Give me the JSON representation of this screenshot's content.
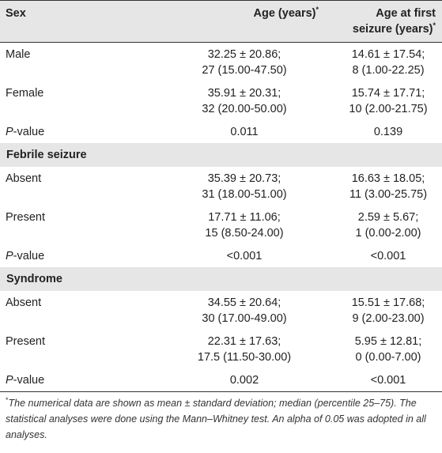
{
  "header": {
    "col1": "Sex",
    "col2": "Age (years)",
    "col2_mark": "*",
    "col3_line1": "Age at first",
    "col3_line2": "seizure (years)",
    "col3_mark": "*"
  },
  "sections": {
    "sex": {
      "rows": [
        {
          "label": "Male",
          "age_line1": "32.25 ± 20.86;",
          "age_line2": "27 (15.00-47.50)",
          "seizure_line1": "14.61 ± 17.54;",
          "seizure_line2": "8 (1.00-22.25)"
        },
        {
          "label": "Female",
          "age_line1": "35.91 ± 20.31;",
          "age_line2": "32 (20.00-50.00)",
          "seizure_line1": "15.74 ± 17.71;",
          "seizure_line2": "10 (2.00-21.75)"
        }
      ],
      "pvalue": {
        "label_italic": "P",
        "label_rest": "-value",
        "age": "0.011",
        "seizure": "0.139"
      }
    },
    "febrile": {
      "title": "Febrile seizure",
      "rows": [
        {
          "label": "Absent",
          "age_line1": "35.39 ± 20.73;",
          "age_line2": "31 (18.00-51.00)",
          "seizure_line1": "16.63 ± 18.05;",
          "seizure_line2": "11 (3.00-25.75)"
        },
        {
          "label": "Present",
          "age_line1": "17.71 ± 11.06;",
          "age_line2": "15 (8.50-24.00)",
          "seizure_line1": "2.59 ± 5.67;",
          "seizure_line2": "1 (0.00-2.00)"
        }
      ],
      "pvalue": {
        "label_italic": "P",
        "label_rest": "-value",
        "age": "<0.001",
        "seizure": "<0.001"
      }
    },
    "syndrome": {
      "title": "Syndrome",
      "rows": [
        {
          "label": "Absent",
          "age_line1": "34.55 ± 20.64;",
          "age_line2": "30 (17.00-49.00)",
          "seizure_line1": "15.51 ± 17.68;",
          "seizure_line2": "9 (2.00-23.00)"
        },
        {
          "label": "Present",
          "age_line1": "22.31 ± 17.63;",
          "age_line2": "17.5 (11.50-30.00)",
          "seizure_line1": "5.95 ± 12.81;",
          "seizure_line2": "0 (0.00-7.00)"
        }
      ],
      "pvalue": {
        "label_italic": "P",
        "label_rest": "-value",
        "age": "0.002",
        "seizure": "<0.001"
      }
    }
  },
  "footnote": {
    "mark": "*",
    "text": "The numerical data are shown as mean ± standard deviation; median (percentile 25–75). The statistical analyses were done using the Mann–Whitney test. An alpha of 0.05 was adopted in all analyses."
  }
}
